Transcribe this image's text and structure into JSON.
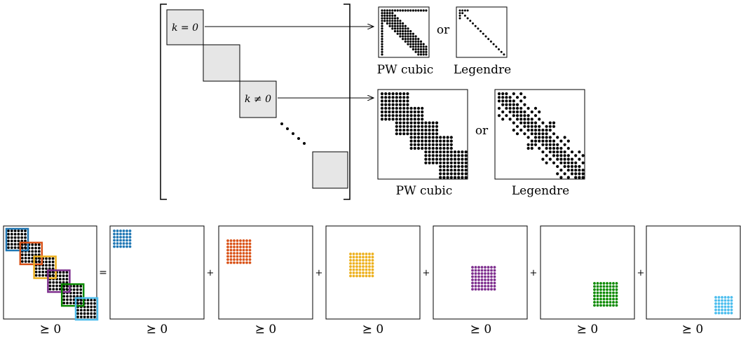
{
  "top": {
    "block_label_zero": "k = 0",
    "block_label_nonzero": "k ≠ 0",
    "or_text": "or",
    "pw_cubic": "PW cubic",
    "legendre": "Legendre"
  },
  "bottom": {
    "equals": "=",
    "plus": "+",
    "psd": "⪰ 0"
  },
  "colors": {
    "blue": "#1f77b4",
    "orange": "#d95319",
    "yellow": "#edb120",
    "purple": "#7e2f8e",
    "green": "#0b8a00",
    "lightblue": "#4dbeee",
    "block_fill": "#e6e6e6"
  }
}
